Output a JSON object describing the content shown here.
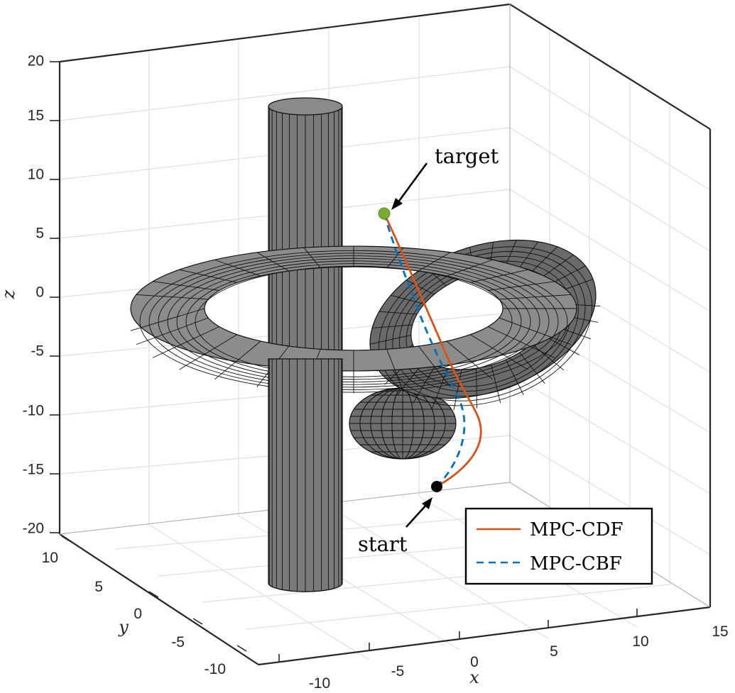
{
  "chart_data": {
    "type": "line3d",
    "xlabel": "x",
    "ylabel": "y",
    "zlabel": "z",
    "xlim": [
      -10,
      15
    ],
    "ylim": [
      -10,
      10
    ],
    "zlim": [
      -20,
      20
    ],
    "xticks": [
      "-10",
      "-5",
      "0",
      "5",
      "10",
      "15"
    ],
    "yticks": [
      "-10",
      "-5",
      "0",
      "5",
      "10"
    ],
    "zticks": [
      "-20",
      "-15",
      "-10",
      "-5",
      "0",
      "5",
      "10",
      "15",
      "20"
    ],
    "grid": true,
    "legend_position": "bottom-right",
    "series": [
      {
        "name": "MPC-CDF",
        "color": "#D95319",
        "linestyle": "solid"
      },
      {
        "name": "MPC-CBF",
        "color": "#0072BD",
        "linestyle": "dashed"
      }
    ],
    "annotations": [
      {
        "text": "target",
        "marker_color": "#77AC30"
      },
      {
        "text": "start",
        "marker_color": "#000000"
      }
    ],
    "obstacles": [
      "cylinder",
      "torus",
      "torus",
      "sphere"
    ],
    "obstacle_color": "#808080"
  }
}
